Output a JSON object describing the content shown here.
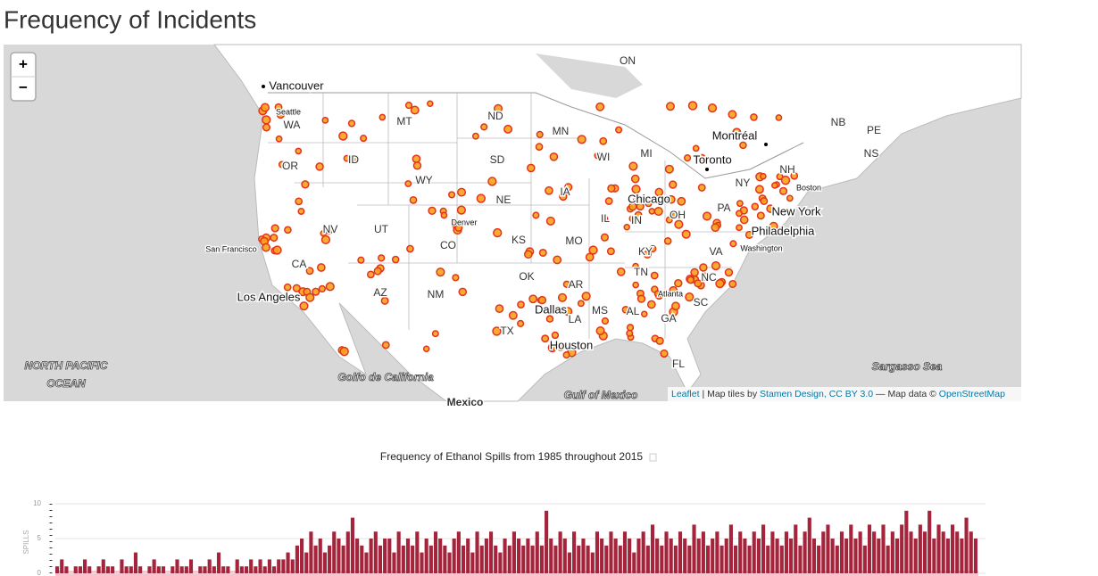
{
  "header": {
    "title": "Frequency of Incidents"
  },
  "map": {
    "zoom_in": "+",
    "zoom_out": "−",
    "labels": [
      "Vancouver",
      "ON",
      "MT",
      "ND",
      "Seattle",
      "WA",
      "MN",
      "Montréal",
      "NB",
      "PE",
      "NS",
      "WI",
      "MI",
      "Toronto",
      "OR",
      "ID",
      "SD",
      "NH",
      "WY",
      "NY",
      "Boston",
      "IA",
      "Chicago",
      "NE",
      "PA",
      "New York",
      "IL",
      "IN",
      "OH",
      "Denver",
      "NV",
      "UT",
      "CO",
      "KS",
      "MO",
      "Philadelphia",
      "San Francisco",
      "KY",
      "VA",
      "Washington",
      "CA",
      "TN",
      "NC",
      "OK",
      "AR",
      "AZ",
      "NM",
      "Atlanta",
      "Los Angeles",
      "SC",
      "Dallas",
      "MS",
      "AL",
      "GA",
      "LA",
      "TX",
      "Houston",
      "FL",
      "NORTH PACIFIC",
      "OCEAN",
      "Sargasso Sea",
      "Golfo de California",
      "Gulf of Mexico",
      "Mexico"
    ],
    "attribution": [
      "Leaflet",
      " | Map tiles by ",
      "Stamen Design",
      ", ",
      "CC BY 3.0",
      " — Map data © ",
      "OpenStreetMap"
    ]
  },
  "chart_data": {
    "type": "bar",
    "title": "Frequency of Ethanol Spills from 1985 throughout 2015",
    "y_label": "SPILLS",
    "color": "#a3243b",
    "ylim": [
      0,
      10
    ],
    "yticks": [
      0,
      5,
      10
    ],
    "grid": true,
    "values": [
      1,
      2,
      1,
      0,
      1,
      1,
      2,
      1,
      0,
      1,
      2,
      1,
      1,
      0,
      2,
      1,
      1,
      3,
      1,
      0,
      1,
      2,
      1,
      1,
      0,
      1,
      2,
      1,
      1,
      2,
      0,
      1,
      1,
      2,
      1,
      3,
      1,
      1,
      0,
      2,
      1,
      1,
      2,
      1,
      2,
      1,
      2,
      1,
      2,
      2,
      3,
      2,
      4,
      5,
      3,
      6,
      4,
      5,
      3,
      4,
      6,
      5,
      4,
      6,
      8,
      5,
      4,
      3,
      5,
      6,
      4,
      5,
      5,
      3,
      6,
      4,
      5,
      4,
      6,
      3,
      5,
      4,
      6,
      5,
      4,
      3,
      5,
      6,
      4,
      5,
      3,
      6,
      4,
      5,
      6,
      4,
      3,
      5,
      4,
      6,
      5,
      4,
      5,
      4,
      6,
      4,
      9,
      5,
      4,
      6,
      5,
      3,
      6,
      4,
      5,
      4,
      3,
      6,
      5,
      4,
      6,
      5,
      4,
      6,
      5,
      3,
      5,
      6,
      4,
      7,
      5,
      4,
      6,
      5,
      4,
      6,
      5,
      4,
      7,
      5,
      6,
      4,
      5,
      6,
      4,
      5,
      7,
      4,
      6,
      5,
      4,
      6,
      5,
      7,
      4,
      6,
      5,
      4,
      6,
      5,
      7,
      4,
      6,
      8,
      5,
      4,
      6,
      7,
      5,
      4,
      6,
      5,
      7,
      5,
      6,
      4,
      7,
      6,
      5,
      7,
      4,
      6,
      5,
      7,
      9,
      6,
      5,
      7,
      6,
      9,
      5,
      7,
      6,
      5,
      7,
      6,
      5,
      8,
      6,
      5
    ]
  }
}
